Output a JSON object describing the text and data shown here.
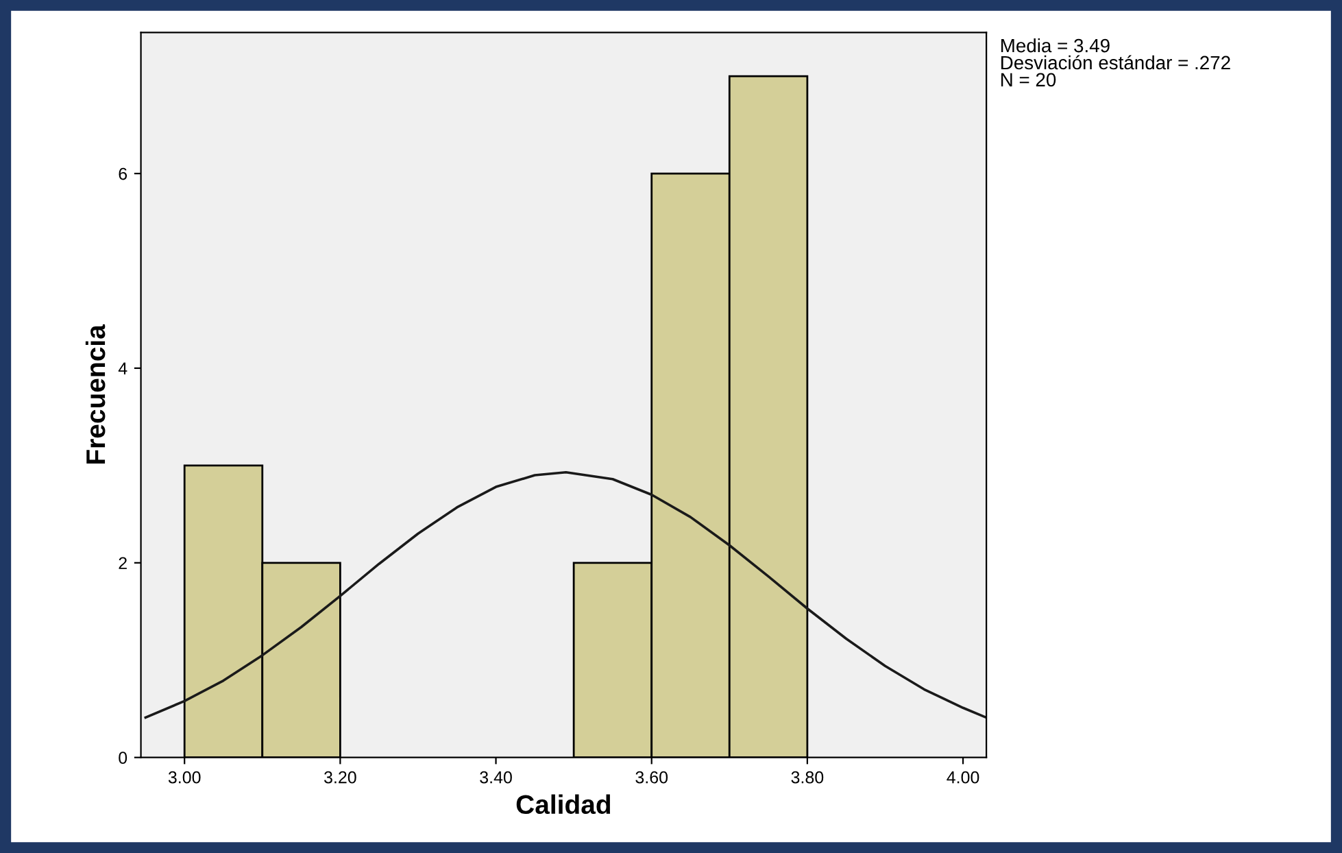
{
  "chart_data": {
    "type": "histogram",
    "xlabel": "Calidad",
    "ylabel": "Frecuencia",
    "annotations": [
      "Media = 3.49\nDesviación estándar = .272\nN = 20"
    ],
    "series": [
      {
        "type": "histogram",
        "color": "#d4cf98",
        "bins": [
          3.0,
          3.1,
          3.2,
          3.3,
          3.4,
          3.5,
          3.6,
          3.7,
          3.8
        ],
        "values": [
          3,
          2,
          0,
          0,
          0,
          2,
          6,
          7
        ]
      },
      {
        "type": "line",
        "color": "#1a1a1a",
        "x": [
          2.95,
          3.0,
          3.05,
          3.1,
          3.15,
          3.2,
          3.25,
          3.3,
          3.35,
          3.4,
          3.45,
          3.49,
          3.55,
          3.6,
          3.65,
          3.7,
          3.75,
          3.8,
          3.85,
          3.9,
          3.95,
          4.0,
          4.03
        ],
        "values": [
          0.41,
          0.58,
          0.79,
          1.05,
          1.34,
          1.66,
          1.99,
          2.3,
          2.57,
          2.78,
          2.9,
          2.93,
          2.86,
          2.7,
          2.47,
          2.18,
          1.86,
          1.53,
          1.22,
          0.94,
          0.7,
          0.51,
          0.41
        ]
      }
    ],
    "xlim": [
      2.944,
      4.03
    ],
    "ylim": [
      0,
      7.45
    ],
    "xticks": [
      {
        "value": 3.0,
        "label": "3.00"
      },
      {
        "value": 3.2,
        "label": "3.20"
      },
      {
        "value": 3.4,
        "label": "3.40"
      },
      {
        "value": 3.6,
        "label": "3.60"
      },
      {
        "value": 3.8,
        "label": "3.80"
      },
      {
        "value": 4.0,
        "label": "4.00"
      }
    ],
    "yticks": [
      0,
      2,
      4,
      6
    ],
    "grid": false,
    "line_style": "solid",
    "marker": "none"
  }
}
